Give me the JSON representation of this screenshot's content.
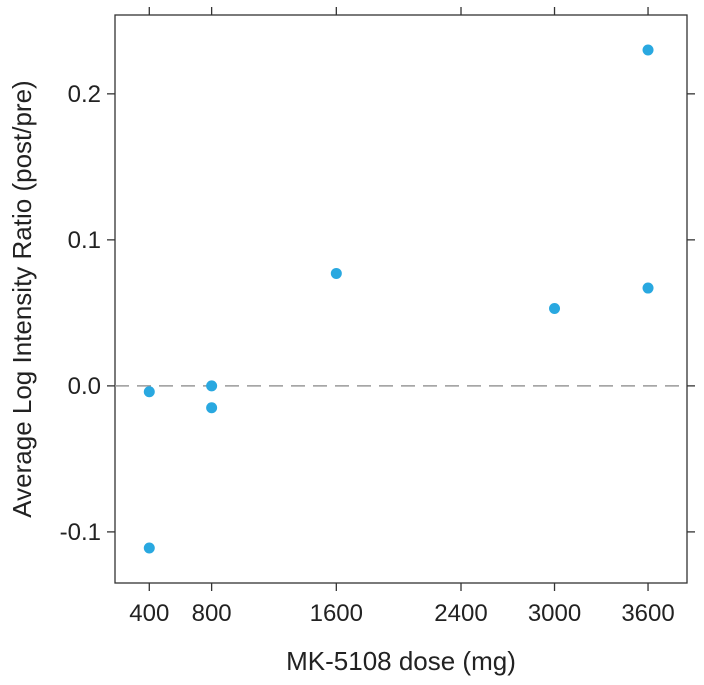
{
  "chart_data": {
    "type": "scatter",
    "xlabel": "MK-5108 dose (mg)",
    "ylabel": "Average Log Intensity Ratio (post/pre)",
    "xlim": [
      180,
      3850
    ],
    "ylim": [
      -0.135,
      0.254
    ],
    "xticks": [
      400,
      800,
      1600,
      2400,
      3000,
      3600
    ],
    "xtick_labels": [
      "400",
      "800",
      "1600",
      "2400",
      "3000",
      "3600"
    ],
    "yticks": [
      -0.1,
      0.0,
      0.1,
      0.2
    ],
    "ytick_labels": [
      "-0.1",
      "0.0",
      "0.1",
      "0.2"
    ],
    "reference_line": {
      "y": 0.0,
      "style": "dashed",
      "color": "#999999"
    },
    "grid": false,
    "marker_color": "#29a8e0",
    "points": [
      {
        "x": 400,
        "y": -0.004
      },
      {
        "x": 400,
        "y": -0.111
      },
      {
        "x": 800,
        "y": 0.0
      },
      {
        "x": 800,
        "y": -0.015
      },
      {
        "x": 1600,
        "y": 0.077
      },
      {
        "x": 3000,
        "y": 0.053
      },
      {
        "x": 3600,
        "y": 0.23
      },
      {
        "x": 3600,
        "y": 0.067
      }
    ]
  }
}
